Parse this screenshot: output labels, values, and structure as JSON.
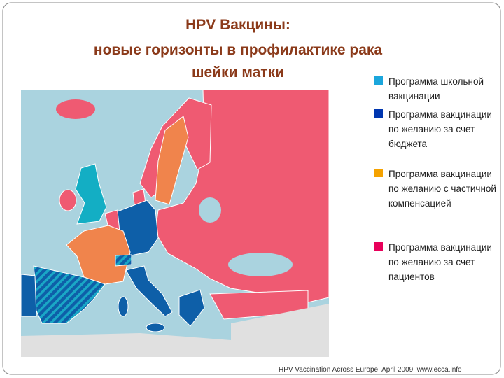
{
  "title": {
    "line1": "HPV Вакцины:",
    "line2": "новые горизонты в профилактике рака",
    "line3": "шейки матки"
  },
  "legend": [
    {
      "label": "Программа школьной вакцинации",
      "color": "#1ba6dc"
    },
    {
      "label": "Программа вакцинации по желанию за счет бюджета",
      "color": "#0036b0"
    },
    {
      "label": "Программа вакцинации по желанию с частичной компенсацией",
      "color": "#f5a200"
    },
    {
      "label": "Программа вакцинации по желанию за счет пациентов",
      "color": "#e8005a"
    }
  ],
  "source": "HPV Vaccination Across Europe, April 2009, www.ecca.info"
}
